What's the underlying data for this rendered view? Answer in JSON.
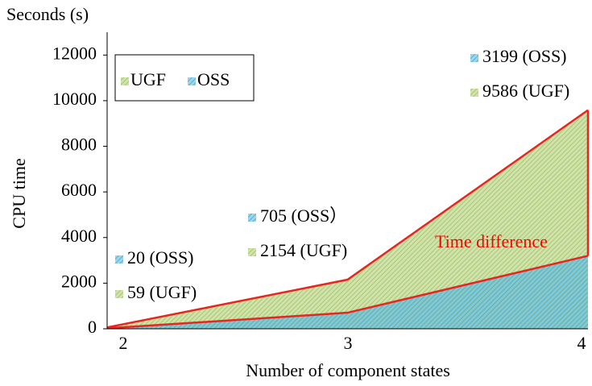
{
  "chart_data": {
    "type": "area",
    "y_unit_label": "Seconds (s)",
    "y_label": "CPU time",
    "x_label": "Number of component states",
    "categories": [
      "2",
      "3",
      "4"
    ],
    "series": [
      {
        "name": "OSS",
        "color": "#4fb3d9",
        "values": [
          20,
          705,
          3199
        ],
        "value_labels": [
          "20 (OSS)",
          "705 (OSS）",
          "3199 (OSS)"
        ]
      },
      {
        "name": "UGF",
        "color": "#a9c96a",
        "values": [
          59,
          2154,
          9586
        ],
        "value_labels": [
          "59 (UGF)",
          "2154 (UGF)",
          "9586 (UGF)"
        ]
      }
    ],
    "outline_color": "#e8251f",
    "annotation": {
      "text": "Time difference",
      "color": "#ff0000"
    },
    "ylim": [
      0,
      13000
    ],
    "yticks": [
      0,
      2000,
      4000,
      6000,
      8000,
      10000,
      12000
    ]
  }
}
